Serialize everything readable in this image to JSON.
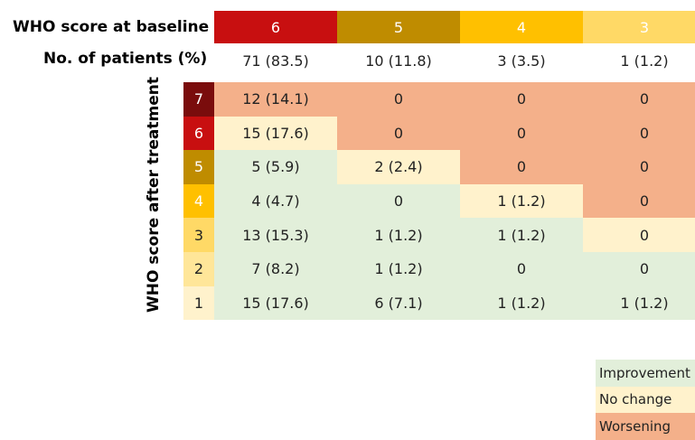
{
  "labels": {
    "baseline_title": "WHO score at baseline",
    "patients_title": "No. of patients (%)",
    "after_title": "WHO score after treatment"
  },
  "colors": {
    "score_7": "#7a0c0c",
    "score_6": "#c80f10",
    "score_5": "#bf8c00",
    "score_4": "#ffc000",
    "score_3": "#ffd966",
    "score_2": "#ffe699",
    "score_1": "#fff2cc",
    "improvement": "#e2efda",
    "no_change": "#fff2cc",
    "worsening": "#f4b08a"
  },
  "legend": [
    {
      "label": "Improvement",
      "color": "#e2efda"
    },
    {
      "label": "No change",
      "color": "#fff2cc"
    },
    {
      "label": "Worsening",
      "color": "#f4b08a"
    }
  ],
  "chart_data": {
    "type": "heatmap",
    "x_title": "WHO score at baseline",
    "y_title": "WHO score after treatment",
    "baseline_scores": [
      "6",
      "5",
      "4",
      "3"
    ],
    "baseline_patients": [
      "71 (83.5)",
      "10 (11.8)",
      "3 (3.5)",
      "1 (1.2)"
    ],
    "after_scores": [
      "7",
      "6",
      "5",
      "4",
      "3",
      "2",
      "1"
    ],
    "cells": [
      [
        "12 (14.1)",
        "0",
        "0",
        "0"
      ],
      [
        "15 (17.6)",
        "0",
        "0",
        "0"
      ],
      [
        "5 (5.9)",
        "2 (2.4)",
        "0",
        "0"
      ],
      [
        "4 (4.7)",
        "0",
        "1 (1.2)",
        "0"
      ],
      [
        "13 (15.3)",
        "1 (1.2)",
        "1 (1.2)",
        "0"
      ],
      [
        "7 (8.2)",
        "1 (1.2)",
        "0",
        "0"
      ],
      [
        "15 (17.6)",
        "6 (7.1)",
        "1 (1.2)",
        "1 (1.2)"
      ]
    ],
    "cell_category": [
      [
        "worsening",
        "worsening",
        "worsening",
        "worsening"
      ],
      [
        "no_change",
        "worsening",
        "worsening",
        "worsening"
      ],
      [
        "improvement",
        "no_change",
        "worsening",
        "worsening"
      ],
      [
        "improvement",
        "improvement",
        "no_change",
        "worsening"
      ],
      [
        "improvement",
        "improvement",
        "improvement",
        "no_change"
      ],
      [
        "improvement",
        "improvement",
        "improvement",
        "improvement"
      ],
      [
        "improvement",
        "improvement",
        "improvement",
        "improvement"
      ]
    ],
    "legend": [
      "Improvement",
      "No change",
      "Worsening"
    ]
  }
}
